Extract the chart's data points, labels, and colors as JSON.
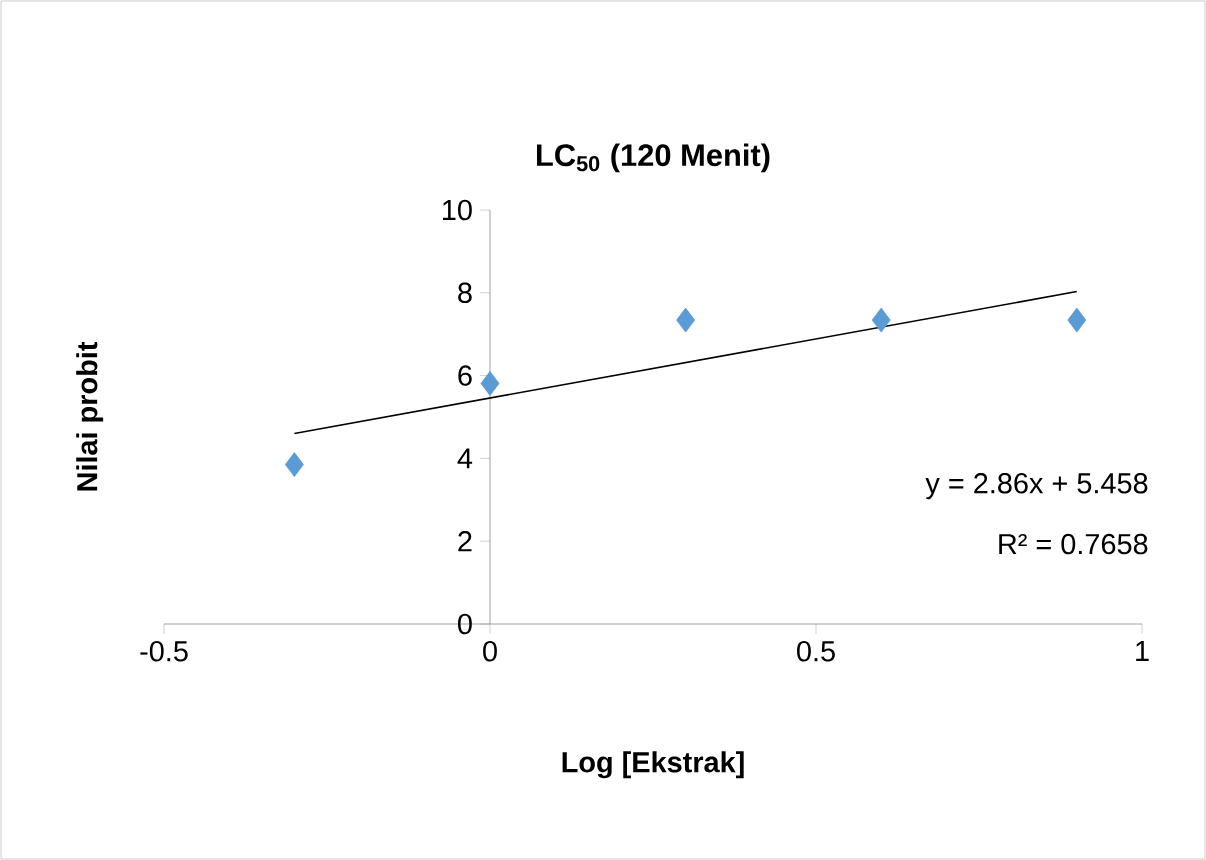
{
  "chart_data": {
    "type": "scatter",
    "title": "LC$_{50}$ (120 Menit)",
    "xlabel": "Log [Ekstrak]",
    "ylabel": "Nilai probit",
    "xlim": [
      -0.5,
      1
    ],
    "ylim": [
      0,
      10
    ],
    "xticks": [
      -0.5,
      0,
      0.5,
      1
    ],
    "yticks": [
      0,
      2,
      4,
      6,
      8,
      10
    ],
    "annotations": [
      "y = 2.86x + 5.458",
      "R² = 0.7658"
    ],
    "series": [
      {
        "color": "#5b9bd5",
        "marker": "diamond",
        "x": [
          -0.3,
          0,
          0.3,
          0.6,
          0.9
        ],
        "values": [
          3.85,
          5.81,
          7.34,
          7.34,
          7.34
        ]
      },
      {
        "type": "line",
        "color": "#000000",
        "marker": "none",
        "x": [
          -0.3,
          0.9
        ],
        "values": [
          4.6,
          8.03
        ]
      }
    ]
  }
}
